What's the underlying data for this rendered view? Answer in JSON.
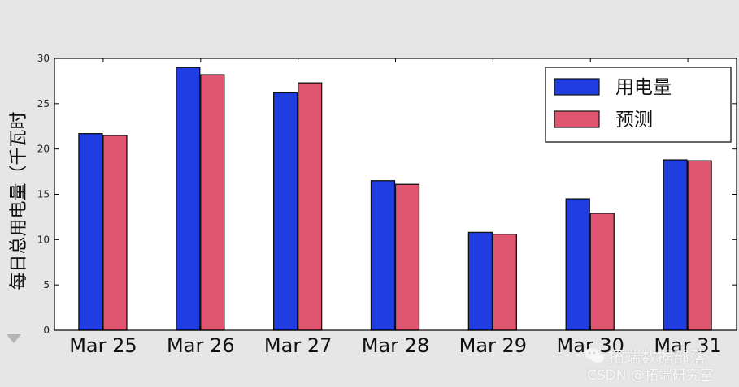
{
  "chart_data": {
    "type": "bar",
    "categories": [
      "Mar 25",
      "Mar 26",
      "Mar 27",
      "Mar 28",
      "Mar 29",
      "Mar 30",
      "Mar 31"
    ],
    "series": [
      {
        "name": "用电量",
        "color": "#1f3de0",
        "values": [
          21.7,
          29.0,
          26.2,
          16.5,
          10.8,
          14.5,
          18.8
        ]
      },
      {
        "name": "预测",
        "color": "#e05670",
        "values": [
          21.5,
          28.2,
          27.3,
          16.1,
          10.6,
          12.9,
          18.7
        ]
      }
    ],
    "title": "",
    "xlabel": "",
    "ylabel": "每日总用电量（千瓦时",
    "ylim": [
      0,
      30
    ],
    "yticks": [
      "0",
      "5",
      "10",
      "15",
      "20",
      "25",
      "30"
    ],
    "grid": false,
    "legend_position": "top-right"
  },
  "watermark": {
    "line1": "拓端数据部落",
    "line2": "CSDN @拓端研究室"
  },
  "colors": {
    "background": "#e6e6e6",
    "plot_bg": "#ffffff",
    "axis": "#000000"
  }
}
